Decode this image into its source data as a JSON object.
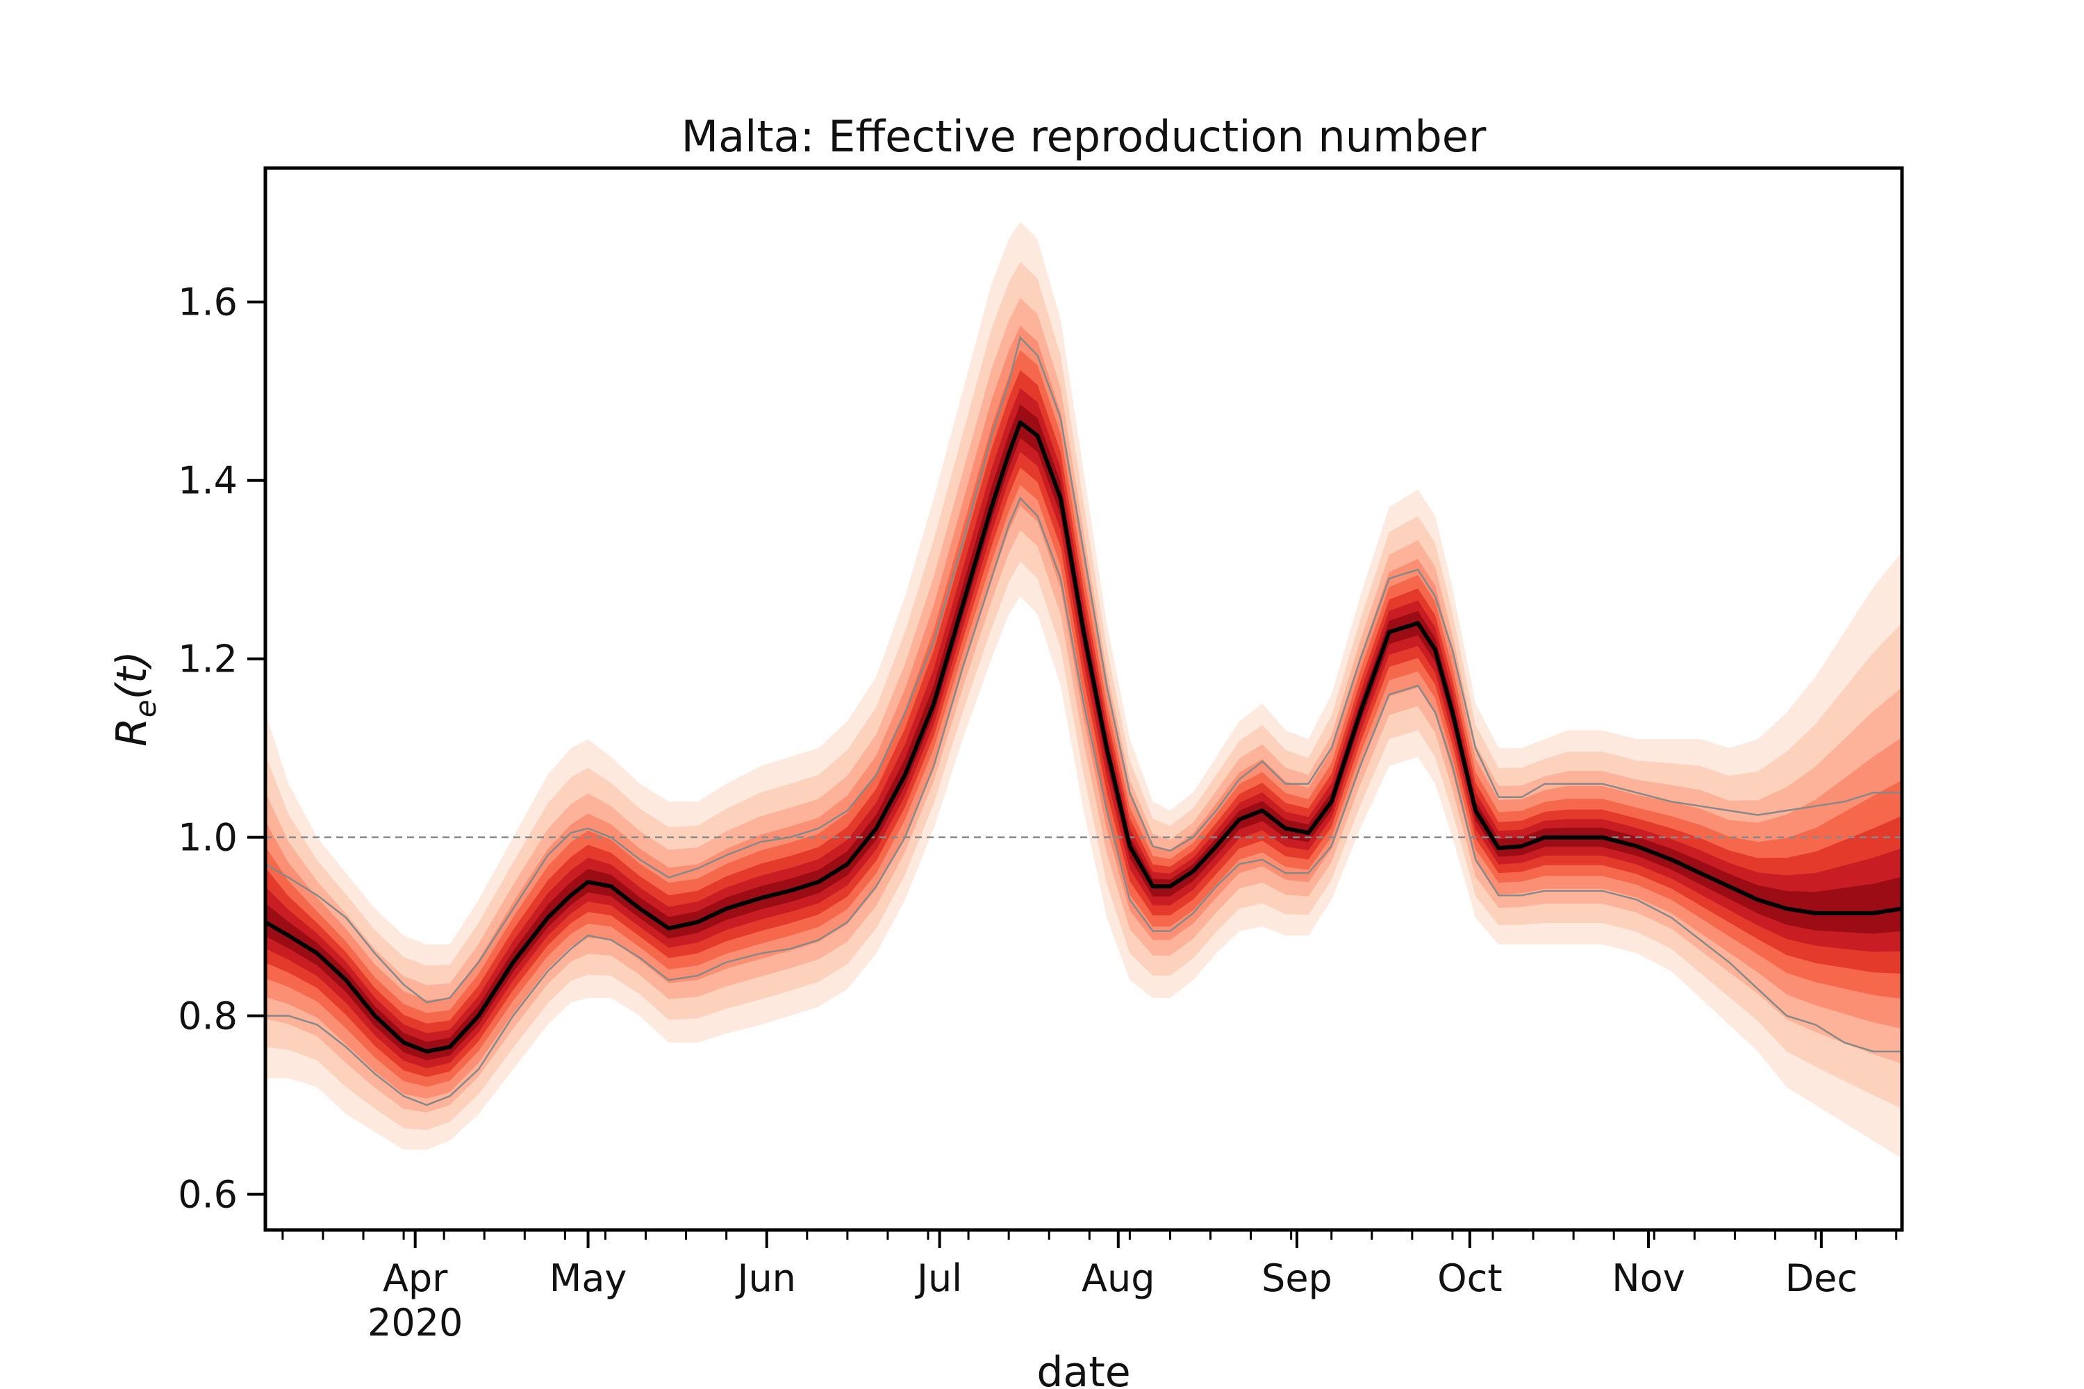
{
  "chart_data": {
    "type": "line",
    "title": "Malta: Effective reproduction number",
    "xlabel": "date",
    "ylabel": {
      "base": "R",
      "subscript": "e",
      "suffix": "(t)"
    },
    "x_range": [
      "2020-03-06",
      "2020-12-15"
    ],
    "ylim": [
      0.56,
      1.75
    ],
    "y_ticks": [
      0.6,
      0.8,
      1.0,
      1.2,
      1.4,
      1.6
    ],
    "y_tick_labels": [
      "0.6",
      "0.8",
      "1.0",
      "1.2",
      "1.4",
      "1.6"
    ],
    "x_ticks": [
      {
        "date": "2020-04-01",
        "label": "Apr",
        "sublabel": "2020"
      },
      {
        "date": "2020-05-01",
        "label": "May",
        "sublabel": ""
      },
      {
        "date": "2020-06-01",
        "label": "Jun",
        "sublabel": ""
      },
      {
        "date": "2020-07-01",
        "label": "Jul",
        "sublabel": ""
      },
      {
        "date": "2020-08-01",
        "label": "Aug",
        "sublabel": ""
      },
      {
        "date": "2020-09-01",
        "label": "Sep",
        "sublabel": ""
      },
      {
        "date": "2020-10-01",
        "label": "Oct",
        "sublabel": ""
      },
      {
        "date": "2020-11-01",
        "label": "Nov",
        "sublabel": ""
      },
      {
        "date": "2020-12-01",
        "label": "Dec",
        "sublabel": ""
      }
    ],
    "minor_ticks": "weekly",
    "reference_line": {
      "y": 1.0,
      "style": "dashed",
      "color": "#888888"
    },
    "grid": false,
    "series": [
      {
        "role": "median",
        "color": "#000000",
        "x": [
          "2020-03-06",
          "2020-03-10",
          "2020-03-15",
          "2020-03-20",
          "2020-03-25",
          "2020-03-30",
          "2020-04-03",
          "2020-04-07",
          "2020-04-12",
          "2020-04-18",
          "2020-04-24",
          "2020-04-28",
          "2020-05-01",
          "2020-05-05",
          "2020-05-10",
          "2020-05-15",
          "2020-05-20",
          "2020-05-25",
          "2020-05-31",
          "2020-06-05",
          "2020-06-10",
          "2020-06-15",
          "2020-06-20",
          "2020-06-25",
          "2020-06-30",
          "2020-07-05",
          "2020-07-10",
          "2020-07-13",
          "2020-07-15",
          "2020-07-18",
          "2020-07-22",
          "2020-07-26",
          "2020-07-30",
          "2020-08-03",
          "2020-08-07",
          "2020-08-10",
          "2020-08-14",
          "2020-08-18",
          "2020-08-22",
          "2020-08-26",
          "2020-08-30",
          "2020-09-03",
          "2020-09-07",
          "2020-09-12",
          "2020-09-17",
          "2020-09-22",
          "2020-09-25",
          "2020-09-28",
          "2020-10-02",
          "2020-10-06",
          "2020-10-10",
          "2020-10-14",
          "2020-10-18",
          "2020-10-24",
          "2020-10-30",
          "2020-11-05",
          "2020-11-10",
          "2020-11-15",
          "2020-11-20",
          "2020-11-25",
          "2020-11-30",
          "2020-12-05",
          "2020-12-10",
          "2020-12-15"
        ],
        "values": [
          0.905,
          0.89,
          0.87,
          0.84,
          0.8,
          0.77,
          0.76,
          0.765,
          0.8,
          0.86,
          0.91,
          0.935,
          0.95,
          0.945,
          0.92,
          0.898,
          0.905,
          0.92,
          0.932,
          0.94,
          0.95,
          0.97,
          1.01,
          1.07,
          1.15,
          1.26,
          1.37,
          1.43,
          1.465,
          1.45,
          1.38,
          1.23,
          1.1,
          0.99,
          0.945,
          0.945,
          0.962,
          0.99,
          1.02,
          1.03,
          1.01,
          1.005,
          1.04,
          1.14,
          1.23,
          1.24,
          1.21,
          1.14,
          1.03,
          0.988,
          0.99,
          1.0,
          1.0,
          1.0,
          0.99,
          0.975,
          0.96,
          0.945,
          0.93,
          0.92,
          0.915,
          0.915,
          0.915,
          0.92
        ]
      },
      {
        "role": "upper_bound",
        "color": "#888888",
        "values": [
          0.97,
          0.955,
          0.935,
          0.91,
          0.87,
          0.835,
          0.815,
          0.82,
          0.86,
          0.92,
          0.98,
          1.005,
          1.01,
          1.0,
          0.975,
          0.955,
          0.965,
          0.98,
          0.995,
          1.0,
          1.01,
          1.03,
          1.07,
          1.14,
          1.22,
          1.33,
          1.45,
          1.51,
          1.56,
          1.54,
          1.47,
          1.32,
          1.17,
          1.05,
          0.99,
          0.985,
          1.0,
          1.03,
          1.065,
          1.085,
          1.06,
          1.06,
          1.1,
          1.2,
          1.29,
          1.3,
          1.27,
          1.21,
          1.1,
          1.045,
          1.045,
          1.06,
          1.06,
          1.06,
          1.05,
          1.04,
          1.035,
          1.03,
          1.025,
          1.03,
          1.035,
          1.04,
          1.05,
          1.05
        ]
      },
      {
        "role": "lower_bound",
        "color": "#888888",
        "values": [
          0.8,
          0.8,
          0.79,
          0.765,
          0.735,
          0.71,
          0.7,
          0.71,
          0.74,
          0.8,
          0.85,
          0.875,
          0.89,
          0.885,
          0.865,
          0.84,
          0.845,
          0.86,
          0.87,
          0.875,
          0.885,
          0.905,
          0.945,
          1.0,
          1.08,
          1.19,
          1.29,
          1.35,
          1.38,
          1.36,
          1.29,
          1.15,
          1.03,
          0.93,
          0.895,
          0.895,
          0.915,
          0.945,
          0.97,
          0.975,
          0.96,
          0.96,
          0.99,
          1.08,
          1.16,
          1.17,
          1.14,
          1.08,
          0.975,
          0.935,
          0.935,
          0.94,
          0.94,
          0.94,
          0.93,
          0.91,
          0.885,
          0.86,
          0.83,
          0.8,
          0.79,
          0.77,
          0.76,
          0.76
        ]
      },
      {
        "role": "outer_upper",
        "color": "#fde8dd",
        "values": [
          1.14,
          1.06,
          1.0,
          0.96,
          0.92,
          0.89,
          0.88,
          0.88,
          0.93,
          1.0,
          1.07,
          1.1,
          1.11,
          1.09,
          1.06,
          1.04,
          1.04,
          1.06,
          1.08,
          1.09,
          1.1,
          1.13,
          1.18,
          1.27,
          1.38,
          1.5,
          1.62,
          1.67,
          1.69,
          1.67,
          1.58,
          1.41,
          1.24,
          1.11,
          1.04,
          1.03,
          1.05,
          1.09,
          1.13,
          1.15,
          1.12,
          1.11,
          1.16,
          1.27,
          1.37,
          1.39,
          1.36,
          1.28,
          1.15,
          1.1,
          1.1,
          1.11,
          1.12,
          1.12,
          1.11,
          1.11,
          1.11,
          1.1,
          1.11,
          1.14,
          1.18,
          1.23,
          1.28,
          1.32
        ]
      },
      {
        "role": "outer_lower",
        "color": "#fde8dd",
        "values": [
          0.73,
          0.73,
          0.72,
          0.69,
          0.67,
          0.65,
          0.65,
          0.66,
          0.69,
          0.74,
          0.79,
          0.815,
          0.82,
          0.82,
          0.8,
          0.77,
          0.77,
          0.78,
          0.79,
          0.8,
          0.81,
          0.83,
          0.87,
          0.93,
          1.01,
          1.11,
          1.2,
          1.25,
          1.27,
          1.25,
          1.17,
          1.03,
          0.91,
          0.84,
          0.82,
          0.82,
          0.84,
          0.87,
          0.895,
          0.9,
          0.89,
          0.89,
          0.93,
          1.01,
          1.08,
          1.09,
          1.06,
          1.0,
          0.91,
          0.88,
          0.88,
          0.88,
          0.88,
          0.88,
          0.87,
          0.85,
          0.82,
          0.79,
          0.76,
          0.72,
          0.7,
          0.68,
          0.66,
          0.64
        ]
      }
    ]
  }
}
